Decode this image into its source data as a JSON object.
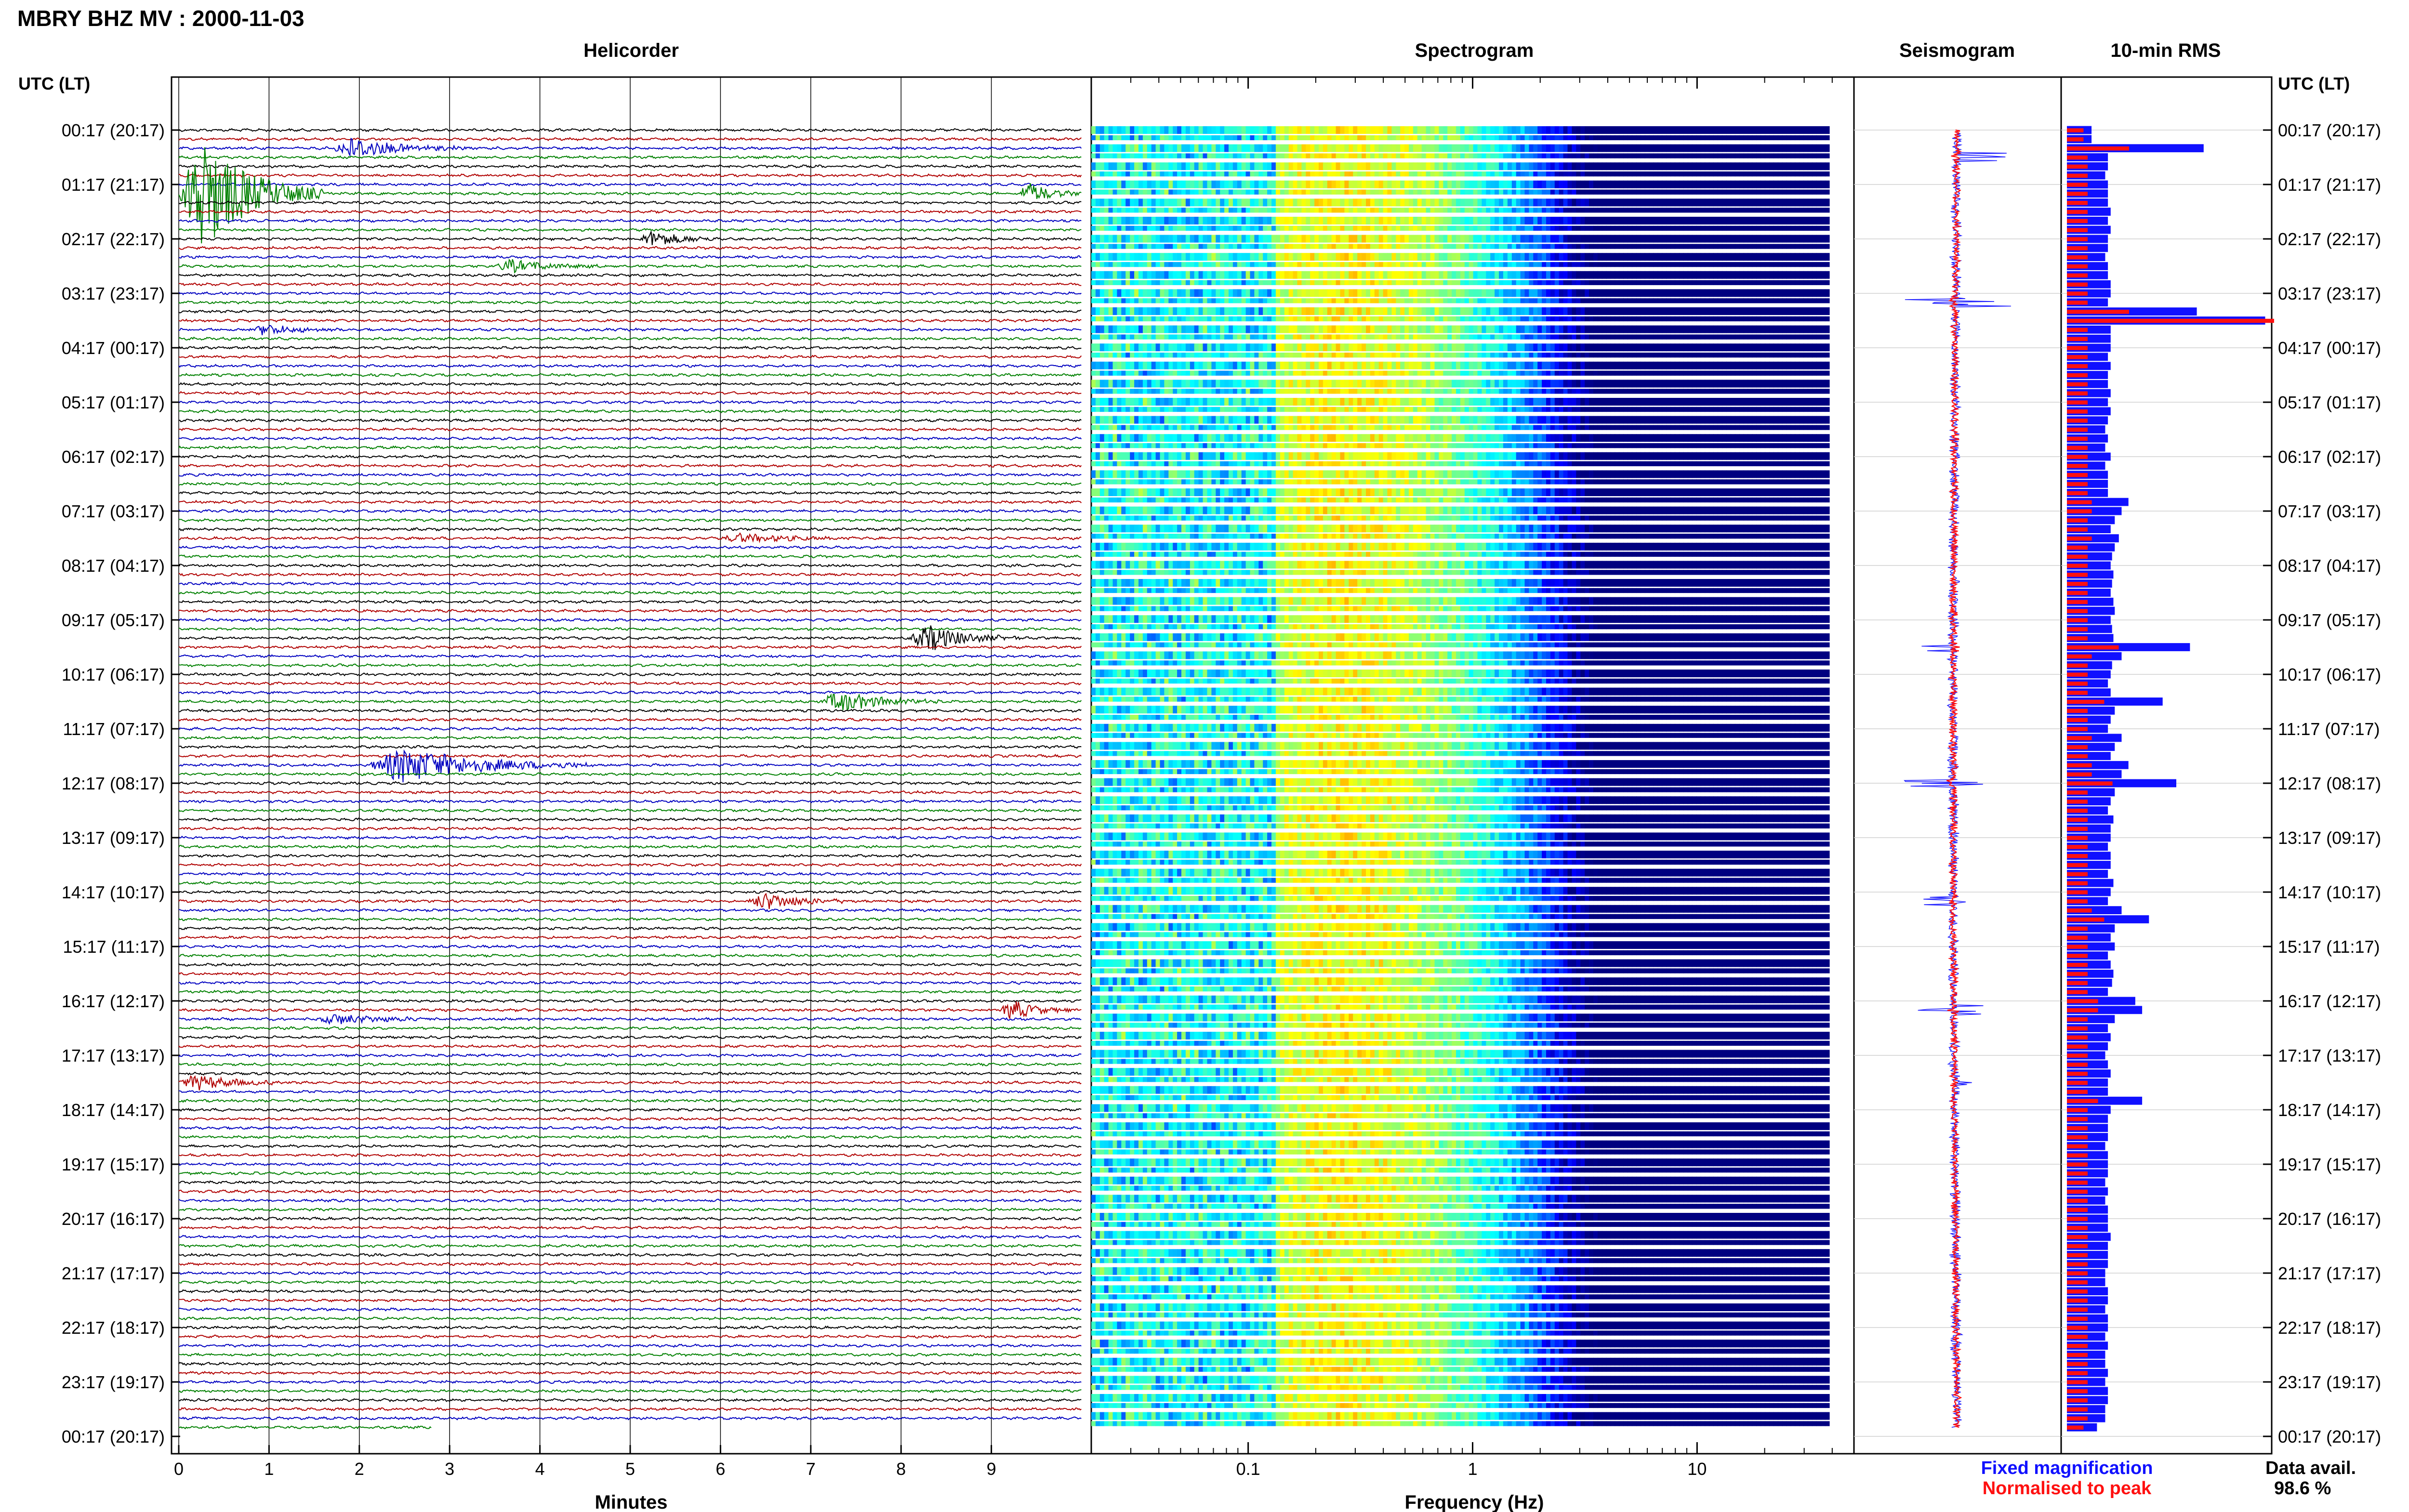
{
  "title": "MBRY BHZ MV : 2000-11-03",
  "panels": {
    "helicorder": "Helicorder",
    "spectrogram": "Spectrogram",
    "seismogram": "Seismogram",
    "rms": "10-min RMS"
  },
  "axis_labels": {
    "left_time": "UTC (LT)",
    "right_time": "UTC (LT)",
    "helicorder_x": "Minutes",
    "spectrogram_x": "Frequency (Hz)"
  },
  "legend": {
    "fixed": "Fixed magnification",
    "normalised": "Normalised to peak"
  },
  "data_availability": {
    "label": "Data avail.",
    "value": "98.6 %"
  },
  "colors": {
    "trace_cycle": [
      "#000000",
      "#b00000",
      "#0000c0",
      "#008000"
    ],
    "rms_fixed": "#1010ff",
    "rms_normalised": "#ff1010",
    "seismo_fixed": "#2020ff",
    "seismo_norm": "#ff1010"
  },
  "chart_data": [
    {
      "type": "line",
      "name": "helicorder",
      "title": "Helicorder",
      "xlabel": "Minutes",
      "xlim": [
        0,
        10
      ],
      "xticks": [
        "0",
        "1",
        "2",
        "3",
        "4",
        "5",
        "6",
        "7",
        "8",
        "9"
      ],
      "time_labels": [
        "00:17 (20:17)",
        "01:17 (21:17)",
        "02:17 (22:17)",
        "03:17 (23:17)",
        "04:17 (00:17)",
        "05:17 (01:17)",
        "06:17 (02:17)",
        "07:17 (03:17)",
        "08:17 (04:17)",
        "09:17 (05:17)",
        "10:17 (06:17)",
        "11:17 (07:17)",
        "12:17 (08:17)",
        "13:17 (09:17)",
        "14:17 (10:17)",
        "15:17 (11:17)",
        "16:17 (12:17)",
        "17:17 (13:17)",
        "18:17 (14:17)",
        "19:17 (15:17)",
        "20:17 (16:17)",
        "21:17 (17:17)",
        "22:17 (18:17)",
        "23:17 (19:17)",
        "00:17 (20:17)"
      ],
      "rows_per_hour": 6,
      "row_count": 144,
      "last_row_minutes": 2.8,
      "events": [
        {
          "row": 2,
          "start_min": 1.7,
          "duration_min": 1.5,
          "amplitude": 1.6
        },
        {
          "row": 7,
          "start_min": 0.0,
          "duration_min": 1.6,
          "amplitude": 9.0
        },
        {
          "row": 12,
          "start_min": 5.1,
          "duration_min": 0.9,
          "amplitude": 1.2
        },
        {
          "row": 15,
          "start_min": 3.5,
          "duration_min": 1.2,
          "amplitude": 0.9
        },
        {
          "row": 22,
          "start_min": 0.8,
          "duration_min": 1.0,
          "amplitude": 0.8
        },
        {
          "row": 45,
          "start_min": 6.0,
          "duration_min": 1.5,
          "amplitude": 0.6
        },
        {
          "row": 56,
          "start_min": 8.1,
          "duration_min": 1.2,
          "amplitude": 2.0
        },
        {
          "row": 63,
          "start_min": 7.1,
          "duration_min": 1.4,
          "amplitude": 1.5
        },
        {
          "row": 70,
          "start_min": 2.1,
          "duration_min": 2.5,
          "amplitude": 2.6
        },
        {
          "row": 85,
          "start_min": 6.3,
          "duration_min": 1.2,
          "amplitude": 1.2
        },
        {
          "row": 97,
          "start_min": 9.1,
          "duration_min": 0.8,
          "amplitude": 1.5
        },
        {
          "row": 98,
          "start_min": 1.5,
          "duration_min": 1.5,
          "amplitude": 0.7
        },
        {
          "row": 105,
          "start_min": 0.0,
          "duration_min": 1.2,
          "amplitude": 1.1
        },
        {
          "row": 7,
          "start_min": 9.3,
          "duration_min": 0.7,
          "amplitude": 1.7
        }
      ]
    },
    {
      "type": "heatmap",
      "name": "spectrogram",
      "title": "Spectrogram",
      "xlabel": "Frequency (Hz)",
      "xscale": "log",
      "xlim": [
        0.02,
        50
      ],
      "xticks": [
        0.1,
        1,
        10
      ],
      "xtick_labels": [
        "0.1",
        "1",
        "10"
      ],
      "freq_max_plotted": 40,
      "peak_frequency_hz": 0.25,
      "colormap": "jet"
    },
    {
      "type": "line",
      "name": "seismogram",
      "title": "Seismogram",
      "series": [
        {
          "name": "Fixed magnification",
          "color": "#2020ff"
        },
        {
          "name": "Normalised to peak",
          "color": "#ff1010"
        }
      ],
      "spikes": [
        {
          "row": 3,
          "amplitude": 0.5
        },
        {
          "row": 19,
          "amplitude": 1.0
        },
        {
          "row": 57,
          "amplitude": 0.5
        },
        {
          "row": 72,
          "amplitude": 0.6
        },
        {
          "row": 85,
          "amplitude": 0.3
        },
        {
          "row": 97,
          "amplitude": 0.35
        },
        {
          "row": 105,
          "amplitude": 0.2
        }
      ]
    },
    {
      "type": "bar",
      "name": "rms",
      "title": "10-min RMS",
      "orientation": "horizontal",
      "series": [
        {
          "name": "Fixed magnification",
          "color": "#1010ff",
          "values": [
            0.18,
            0.18,
            1.0,
            0.3,
            0.3,
            0.28,
            0.3,
            0.3,
            0.3,
            0.32,
            0.3,
            0.32,
            0.3,
            0.3,
            0.28,
            0.3,
            0.3,
            0.32,
            0.32,
            0.3,
            0.95,
            1.45,
            0.32,
            0.32,
            0.32,
            0.3,
            0.32,
            0.3,
            0.3,
            0.32,
            0.3,
            0.32,
            0.3,
            0.28,
            0.3,
            0.28,
            0.32,
            0.28,
            0.3,
            0.3,
            0.3,
            0.45,
            0.4,
            0.35,
            0.32,
            0.38,
            0.35,
            0.33,
            0.32,
            0.34,
            0.33,
            0.32,
            0.34,
            0.35,
            0.32,
            0.33,
            0.34,
            0.9,
            0.4,
            0.33,
            0.32,
            0.3,
            0.32,
            0.7,
            0.35,
            0.32,
            0.3,
            0.4,
            0.35,
            0.32,
            0.45,
            0.4,
            0.8,
            0.35,
            0.32,
            0.3,
            0.34,
            0.32,
            0.32,
            0.3,
            0.32,
            0.32,
            0.3,
            0.34,
            0.32,
            0.3,
            0.4,
            0.6,
            0.35,
            0.32,
            0.35,
            0.3,
            0.32,
            0.34,
            0.33,
            0.3,
            0.5,
            0.55,
            0.35,
            0.3,
            0.32,
            0.3,
            0.28,
            0.3,
            0.32,
            0.3,
            0.3,
            0.55,
            0.32,
            0.3,
            0.3,
            0.3,
            0.28,
            0.3,
            0.3,
            0.3,
            0.28,
            0.3,
            0.28,
            0.3,
            0.3,
            0.3,
            0.32,
            0.3,
            0.3,
            0.3,
            0.28,
            0.28,
            0.3,
            0.3,
            0.28,
            0.3,
            0.3,
            0.28,
            0.3,
            0.28,
            0.28,
            0.3,
            0.28,
            0.3,
            0.3,
            0.28,
            0.28,
            0.22
          ]
        },
        {
          "name": "Normalised to peak",
          "color": "#ff1010",
          "values": [
            0.08,
            0.08,
            0.3,
            0.1,
            0.1,
            0.1,
            0.1,
            0.1,
            0.1,
            0.1,
            0.1,
            0.1,
            0.1,
            0.1,
            0.1,
            0.1,
            0.1,
            0.1,
            0.1,
            0.1,
            0.3,
            1.0,
            0.1,
            0.1,
            0.1,
            0.1,
            0.1,
            0.1,
            0.1,
            0.1,
            0.1,
            0.1,
            0.1,
            0.1,
            0.1,
            0.1,
            0.1,
            0.1,
            0.1,
            0.1,
            0.1,
            0.12,
            0.12,
            0.1,
            0.1,
            0.12,
            0.1,
            0.1,
            0.1,
            0.1,
            0.1,
            0.1,
            0.1,
            0.1,
            0.1,
            0.1,
            0.1,
            0.25,
            0.12,
            0.1,
            0.1,
            0.1,
            0.1,
            0.18,
            0.1,
            0.1,
            0.1,
            0.12,
            0.1,
            0.1,
            0.12,
            0.12,
            0.22,
            0.1,
            0.1,
            0.1,
            0.1,
            0.1,
            0.1,
            0.1,
            0.1,
            0.1,
            0.1,
            0.1,
            0.1,
            0.1,
            0.12,
            0.18,
            0.1,
            0.1,
            0.1,
            0.1,
            0.1,
            0.1,
            0.1,
            0.1,
            0.15,
            0.15,
            0.1,
            0.1,
            0.1,
            0.1,
            0.1,
            0.1,
            0.1,
            0.1,
            0.1,
            0.15,
            0.1,
            0.1,
            0.1,
            0.1,
            0.1,
            0.1,
            0.1,
            0.1,
            0.1,
            0.1,
            0.1,
            0.1,
            0.1,
            0.1,
            0.1,
            0.1,
            0.1,
            0.1,
            0.1,
            0.1,
            0.1,
            0.1,
            0.1,
            0.1,
            0.1,
            0.1,
            0.1,
            0.1,
            0.1,
            0.1,
            0.1,
            0.1,
            0.1,
            0.1,
            0.1,
            0.08
          ]
        }
      ]
    }
  ]
}
